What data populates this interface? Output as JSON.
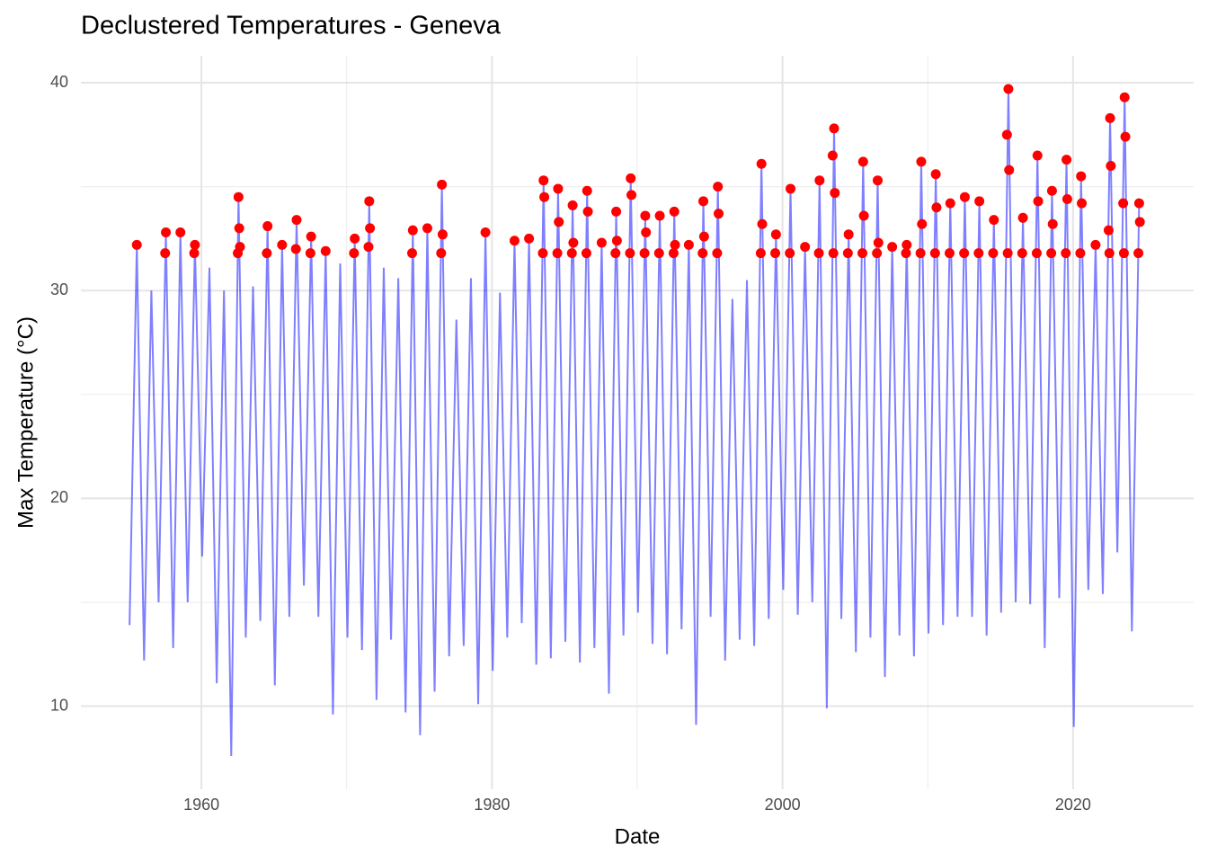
{
  "chart_data": {
    "type": "line",
    "title": "Declustered Temperatures - Geneva",
    "x_label": "Date",
    "y_label": "Max Temperature (°C)",
    "xlim": [
      1951.7,
      2028.3
    ],
    "xticks": [
      1960,
      1980,
      2000,
      2020
    ],
    "ylim": [
      6.0,
      41.3
    ],
    "yticks": [
      10,
      20,
      30,
      40
    ],
    "grid": true,
    "series": [
      {
        "type": "line",
        "color": "#0000ff",
        "x": [
          1955.05,
          1955.55,
          1956.05,
          1956.55,
          1957.05,
          1957.55,
          1958.05,
          1958.55,
          1959.05,
          1959.55,
          1960.05,
          1960.55,
          1961.05,
          1961.55,
          1962.05,
          1962.55,
          1963.05,
          1963.55,
          1964.05,
          1964.55,
          1965.05,
          1965.55,
          1966.05,
          1966.55,
          1967.05,
          1967.55,
          1968.05,
          1968.55,
          1969.05,
          1969.55,
          1970.05,
          1970.55,
          1971.05,
          1971.55,
          1972.05,
          1972.55,
          1973.05,
          1973.55,
          1974.05,
          1974.55,
          1975.05,
          1975.55,
          1976.05,
          1976.55,
          1977.05,
          1977.55,
          1978.05,
          1978.55,
          1979.05,
          1979.55,
          1980.05,
          1980.55,
          1981.05,
          1981.55,
          1982.05,
          1982.55,
          1983.05,
          1983.55,
          1984.05,
          1984.55,
          1985.05,
          1985.55,
          1986.05,
          1986.55,
          1987.05,
          1987.55,
          1988.05,
          1988.55,
          1989.05,
          1989.55,
          1990.05,
          1990.55,
          1991.05,
          1991.55,
          1992.05,
          1992.55,
          1993.05,
          1993.55,
          1994.05,
          1994.55,
          1995.05,
          1995.55,
          1996.05,
          1996.55,
          1997.05,
          1997.55,
          1998.05,
          1998.55,
          1999.05,
          1999.55,
          2000.05,
          2000.55,
          2001.05,
          2001.55,
          2002.05,
          2002.55,
          2003.05,
          2003.55,
          2004.05,
          2004.55,
          2005.05,
          2005.55,
          2006.05,
          2006.55,
          2007.05,
          2007.55,
          2008.05,
          2008.55,
          2009.05,
          2009.55,
          2010.05,
          2010.55,
          2011.05,
          2011.55,
          2012.05,
          2012.55,
          2013.05,
          2013.55,
          2014.05,
          2014.55,
          2015.05,
          2015.55,
          2016.05,
          2016.55,
          2017.05,
          2017.55,
          2018.05,
          2018.55,
          2019.05,
          2019.55,
          2020.05,
          2020.55,
          2021.05,
          2021.55,
          2022.05,
          2022.55,
          2023.05,
          2023.55,
          2024.05,
          2024.55
        ],
        "values": [
          13.9,
          32.2,
          12.2,
          30.0,
          15.0,
          32.8,
          12.8,
          32.8,
          15.0,
          32.2,
          17.2,
          31.1,
          11.1,
          30.0,
          7.6,
          34.5,
          13.3,
          30.2,
          14.1,
          33.1,
          11.0,
          32.2,
          14.3,
          33.4,
          15.8,
          32.6,
          14.3,
          31.9,
          9.6,
          31.3,
          13.3,
          32.5,
          12.7,
          34.3,
          10.3,
          31.1,
          13.2,
          30.6,
          9.7,
          32.9,
          8.6,
          33.0,
          10.7,
          35.1,
          12.4,
          28.6,
          12.9,
          30.6,
          10.1,
          32.8,
          11.7,
          29.9,
          13.3,
          32.4,
          14.0,
          32.5,
          12.0,
          35.3,
          12.3,
          34.9,
          13.1,
          34.1,
          12.1,
          34.8,
          12.8,
          32.3,
          10.6,
          33.8,
          13.4,
          35.4,
          14.5,
          33.6,
          13.0,
          33.6,
          12.5,
          33.8,
          13.7,
          32.2,
          9.1,
          34.3,
          14.3,
          35.0,
          12.2,
          29.6,
          13.2,
          30.5,
          12.9,
          36.1,
          14.2,
          32.7,
          15.6,
          34.9,
          14.4,
          32.1,
          15.0,
          35.3,
          9.9,
          37.8,
          14.2,
          32.7,
          12.6,
          36.2,
          13.3,
          35.3,
          11.4,
          32.1,
          13.4,
          32.2,
          12.4,
          36.2,
          13.5,
          35.6,
          13.9,
          34.2,
          14.3,
          34.5,
          14.3,
          34.3,
          13.4,
          33.4,
          14.5,
          39.7,
          15.0,
          33.5,
          14.9,
          36.5,
          12.8,
          34.8,
          15.2,
          36.3,
          9.0,
          35.5,
          15.6,
          32.2,
          15.4,
          38.3,
          17.4,
          39.3,
          13.6,
          34.2
        ]
      },
      {
        "type": "scatter",
        "color": "#ff0000",
        "x": [
          1955.55,
          1957.5,
          1957.55,
          1958.55,
          1959.5,
          1959.55,
          1962.5,
          1962.55,
          1962.6,
          1962.65,
          1964.55,
          1964.5,
          1965.55,
          1966.55,
          1966.5,
          1967.55,
          1967.5,
          1968.55,
          1970.55,
          1970.5,
          1971.55,
          1971.5,
          1971.6,
          1974.55,
          1974.5,
          1975.55,
          1976.55,
          1976.5,
          1976.6,
          1979.55,
          1981.55,
          1982.55,
          1983.55,
          1983.5,
          1983.6,
          1984.55,
          1984.5,
          1984.6,
          1985.55,
          1985.5,
          1985.6,
          1986.55,
          1986.5,
          1986.6,
          1987.55,
          1988.55,
          1988.5,
          1988.6,
          1989.55,
          1989.5,
          1989.6,
          1990.55,
          1990.5,
          1990.6,
          1991.55,
          1991.5,
          1992.55,
          1992.5,
          1992.6,
          1993.55,
          1994.55,
          1994.5,
          1994.6,
          1995.55,
          1995.5,
          1995.6,
          1998.55,
          1998.5,
          1998.6,
          1999.55,
          1999.5,
          2000.55,
          2000.5,
          2001.55,
          2002.55,
          2002.5,
          2003.55,
          2003.5,
          2003.6,
          2003.45,
          2004.55,
          2004.5,
          2005.55,
          2005.5,
          2005.6,
          2006.55,
          2006.5,
          2006.6,
          2007.55,
          2008.55,
          2008.5,
          2009.55,
          2009.5,
          2009.6,
          2010.55,
          2010.5,
          2010.6,
          2011.55,
          2011.5,
          2012.55,
          2012.5,
          2013.55,
          2013.5,
          2014.55,
          2014.5,
          2015.55,
          2015.5,
          2015.6,
          2015.45,
          2016.55,
          2016.5,
          2017.55,
          2017.5,
          2017.6,
          2018.55,
          2018.5,
          2018.6,
          2019.55,
          2019.5,
          2019.6,
          2020.55,
          2020.5,
          2020.6,
          2021.55,
          2022.55,
          2022.5,
          2022.6,
          2022.45,
          2023.55,
          2023.5,
          2023.6,
          2023.45,
          2024.55,
          2024.5,
          2024.6
        ],
        "values": [
          32.2,
          31.8,
          32.8,
          32.8,
          31.8,
          32.2,
          31.8,
          34.5,
          33.0,
          32.1,
          33.1,
          31.8,
          32.2,
          33.4,
          32.0,
          32.6,
          31.8,
          31.9,
          32.5,
          31.8,
          34.3,
          32.1,
          33.0,
          32.9,
          31.8,
          33.0,
          35.1,
          31.8,
          32.7,
          32.8,
          32.4,
          32.5,
          35.3,
          31.8,
          34.5,
          34.9,
          31.8,
          33.3,
          34.1,
          31.8,
          32.3,
          34.8,
          31.8,
          33.8,
          32.3,
          33.8,
          31.8,
          32.4,
          35.4,
          31.8,
          34.6,
          33.6,
          31.8,
          32.8,
          33.6,
          31.8,
          33.8,
          31.8,
          32.2,
          32.2,
          34.3,
          31.8,
          32.6,
          35.0,
          31.8,
          33.7,
          36.1,
          31.8,
          33.2,
          32.7,
          31.8,
          34.9,
          31.8,
          32.1,
          35.3,
          31.8,
          37.8,
          31.8,
          34.7,
          36.5,
          32.7,
          31.8,
          36.2,
          31.8,
          33.6,
          35.3,
          31.8,
          32.3,
          32.1,
          32.2,
          31.8,
          36.2,
          31.8,
          33.2,
          35.6,
          31.8,
          34.0,
          34.2,
          31.8,
          34.5,
          31.8,
          34.3,
          31.8,
          33.4,
          31.8,
          39.7,
          31.8,
          35.8,
          37.5,
          33.5,
          31.8,
          36.5,
          31.8,
          34.3,
          34.8,
          31.8,
          33.2,
          36.3,
          31.8,
          34.4,
          35.5,
          31.8,
          34.2,
          32.2,
          38.3,
          31.8,
          36.0,
          32.9,
          39.3,
          31.8,
          37.4,
          34.2,
          34.2,
          31.8,
          33.3
        ]
      }
    ]
  }
}
